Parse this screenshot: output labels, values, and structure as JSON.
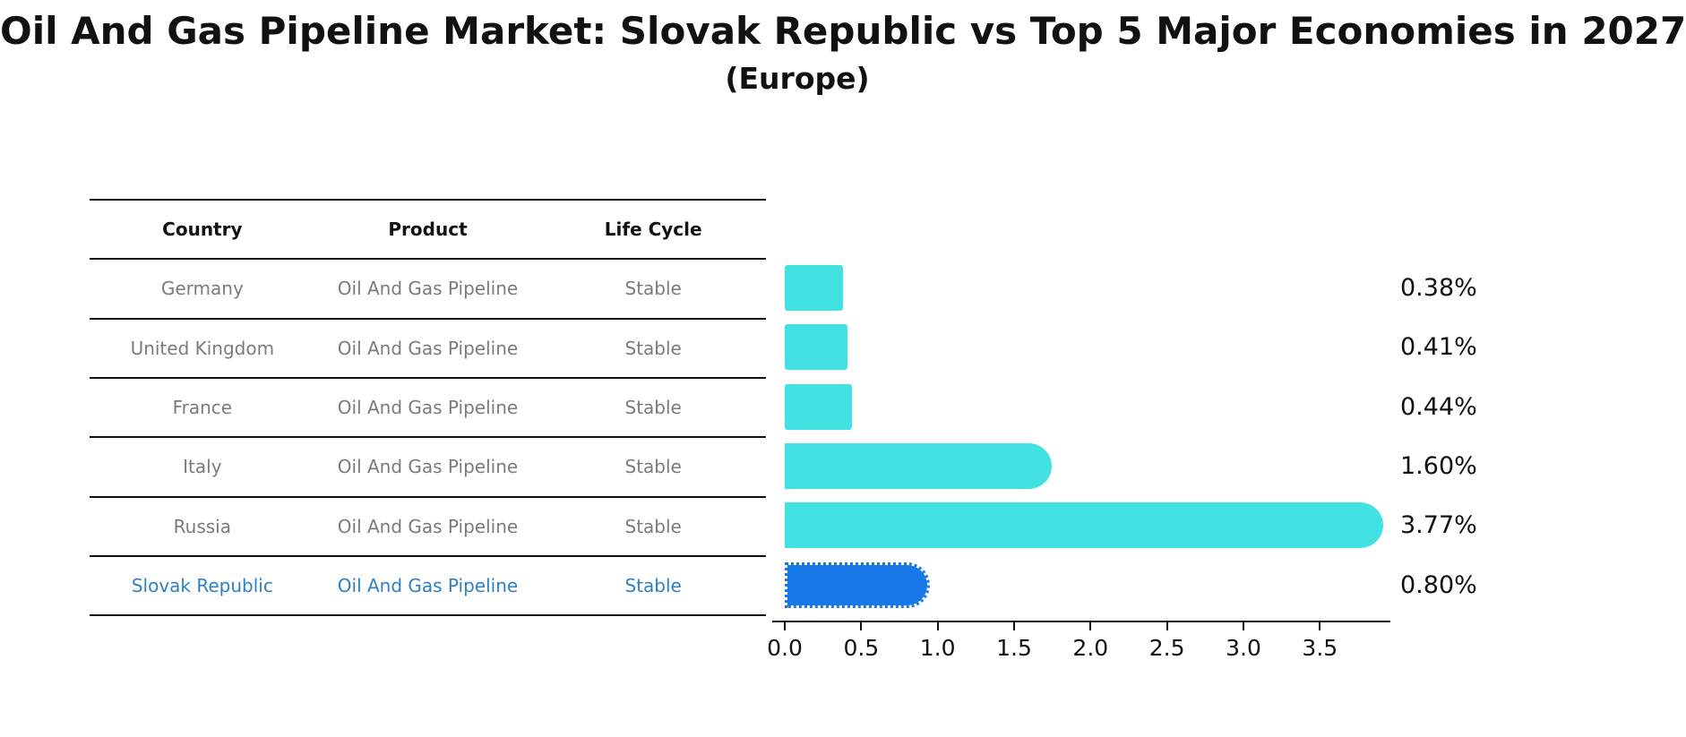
{
  "header": {
    "title": "Oil And Gas Pipeline Market: Slovak Republic vs Top 5 Major Economies in 2027",
    "subtitle": "(Europe)"
  },
  "table": {
    "columns": [
      "Country",
      "Product",
      "Life Cycle"
    ],
    "rows": [
      {
        "country": "Germany",
        "product": "Oil And Gas Pipeline",
        "life_cycle": "Stable",
        "highlighted": false
      },
      {
        "country": "United Kingdom",
        "product": "Oil And Gas Pipeline",
        "life_cycle": "Stable",
        "highlighted": false
      },
      {
        "country": "France",
        "product": "Oil And Gas Pipeline",
        "life_cycle": "Stable",
        "highlighted": false
      },
      {
        "country": "Italy",
        "product": "Oil And Gas Pipeline",
        "life_cycle": "Stable",
        "highlighted": false
      },
      {
        "country": "Russia",
        "product": "Oil And Gas Pipeline",
        "life_cycle": "Stable",
        "highlighted": false
      },
      {
        "country": "Slovak Republic",
        "product": "Oil And Gas Pipeline",
        "life_cycle": "Stable",
        "highlighted": true
      }
    ]
  },
  "axis": {
    "tick_labels": [
      "0.0",
      "0.5",
      "1.0",
      "1.5",
      "2.0",
      "2.5",
      "3.0",
      "3.5"
    ]
  },
  "colors": {
    "bar_cyan": "#43e2e2",
    "bar_highlight_blue": "#1878e8",
    "highlight_text_blue": "#2e80c4",
    "table_text_gray": "#7b7b7b",
    "text_black": "#111111"
  },
  "chart_data": {
    "type": "bar",
    "orientation": "horizontal",
    "title": "Oil And Gas Pipeline Market: Slovak Republic vs Top 5 Major Economies in 2027",
    "subtitle": "(Europe)",
    "categories": [
      "Germany",
      "United Kingdom",
      "France",
      "Italy",
      "Russia",
      "Slovak Republic"
    ],
    "values": [
      0.38,
      0.41,
      0.44,
      1.6,
      3.77,
      0.8
    ],
    "value_labels": [
      "0.38%",
      "0.41%",
      "0.44%",
      "1.60%",
      "3.77%",
      "0.80%"
    ],
    "xlabel": "",
    "ylabel": "",
    "xlim": [
      0,
      4.0
    ],
    "x_ticks": [
      0.0,
      0.5,
      1.0,
      1.5,
      2.0,
      2.5,
      3.0,
      3.5
    ],
    "grid": false,
    "legend": false,
    "highlighted_category": "Slovak Republic",
    "bar_color": "#43e2e2",
    "highlight_color": "#1878e8"
  }
}
